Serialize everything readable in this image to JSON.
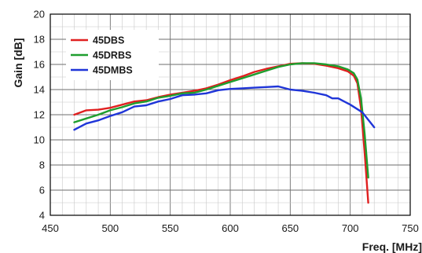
{
  "chart_data": {
    "type": "line",
    "title": "",
    "xlabel": "Freq. [MHz]",
    "ylabel": "Gain [dB]",
    "xlim": [
      450,
      750
    ],
    "ylim": [
      4,
      20
    ],
    "x_ticks": [
      "450",
      "500",
      "550",
      "600",
      "650",
      "700",
      "750"
    ],
    "y_ticks": [
      "4",
      "6",
      "8",
      "10",
      "12",
      "14",
      "16",
      "18",
      "20"
    ],
    "grid": true,
    "legend_position": "top-left",
    "series": [
      {
        "name": "45DBS",
        "color": "#e02020",
        "points": [
          [
            470,
            12.0
          ],
          [
            480,
            12.35
          ],
          [
            490,
            12.4
          ],
          [
            500,
            12.55
          ],
          [
            510,
            12.8
          ],
          [
            520,
            13.05
          ],
          [
            530,
            13.15
          ],
          [
            540,
            13.4
          ],
          [
            550,
            13.6
          ],
          [
            560,
            13.75
          ],
          [
            570,
            13.9
          ],
          [
            580,
            14.1
          ],
          [
            590,
            14.4
          ],
          [
            600,
            14.75
          ],
          [
            610,
            15.05
          ],
          [
            620,
            15.4
          ],
          [
            630,
            15.65
          ],
          [
            640,
            15.85
          ],
          [
            650,
            16.05
          ],
          [
            660,
            16.1
          ],
          [
            670,
            16.05
          ],
          [
            680,
            15.9
          ],
          [
            690,
            15.7
          ],
          [
            698,
            15.45
          ],
          [
            703,
            15.1
          ],
          [
            706,
            14.5
          ],
          [
            709,
            12.5
          ],
          [
            712,
            9.0
          ],
          [
            715,
            5.0
          ]
        ]
      },
      {
        "name": "45DRBS",
        "color": "#1e9e2e",
        "points": [
          [
            470,
            11.4
          ],
          [
            480,
            11.7
          ],
          [
            490,
            12.0
          ],
          [
            500,
            12.35
          ],
          [
            510,
            12.6
          ],
          [
            520,
            12.9
          ],
          [
            530,
            13.05
          ],
          [
            540,
            13.35
          ],
          [
            550,
            13.5
          ],
          [
            560,
            13.7
          ],
          [
            570,
            13.75
          ],
          [
            580,
            14.0
          ],
          [
            590,
            14.3
          ],
          [
            600,
            14.6
          ],
          [
            610,
            14.9
          ],
          [
            620,
            15.2
          ],
          [
            630,
            15.5
          ],
          [
            640,
            15.8
          ],
          [
            650,
            16.0
          ],
          [
            660,
            16.1
          ],
          [
            670,
            16.1
          ],
          [
            680,
            16.0
          ],
          [
            690,
            15.85
          ],
          [
            698,
            15.6
          ],
          [
            703,
            15.3
          ],
          [
            706,
            14.8
          ],
          [
            709,
            13.3
          ],
          [
            712,
            10.5
          ],
          [
            715,
            7.0
          ]
        ]
      },
      {
        "name": "45DMBS",
        "color": "#1f35d8",
        "points": [
          [
            470,
            10.8
          ],
          [
            480,
            11.3
          ],
          [
            490,
            11.55
          ],
          [
            500,
            11.9
          ],
          [
            510,
            12.2
          ],
          [
            520,
            12.65
          ],
          [
            530,
            12.75
          ],
          [
            540,
            13.05
          ],
          [
            550,
            13.25
          ],
          [
            560,
            13.55
          ],
          [
            570,
            13.6
          ],
          [
            580,
            13.7
          ],
          [
            590,
            13.95
          ],
          [
            600,
            14.05
          ],
          [
            610,
            14.1
          ],
          [
            620,
            14.15
          ],
          [
            630,
            14.2
          ],
          [
            640,
            14.25
          ],
          [
            650,
            14.0
          ],
          [
            660,
            13.9
          ],
          [
            670,
            13.75
          ],
          [
            680,
            13.55
          ],
          [
            685,
            13.3
          ],
          [
            690,
            13.3
          ],
          [
            700,
            12.8
          ],
          [
            710,
            12.2
          ],
          [
            720,
            11.0
          ]
        ]
      }
    ]
  }
}
